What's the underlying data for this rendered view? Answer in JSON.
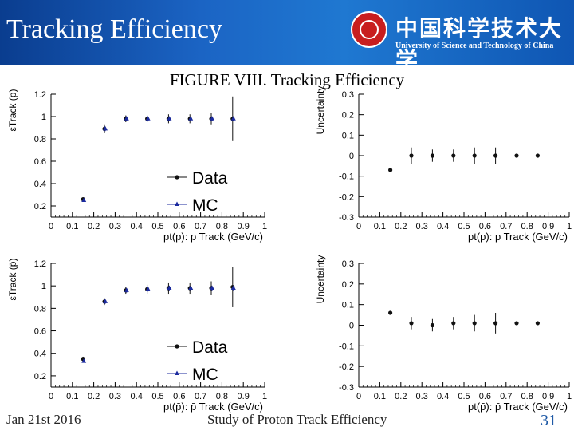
{
  "banner": {
    "title": "Tracking Efficiency",
    "university_cn": "中国科学技术大学",
    "university_en": "University of Science and Technology of China",
    "bg_color": "#1b64c4"
  },
  "caption": "FIGURE VIII. Tracking Efficiency",
  "footer": {
    "date": "Jan 21st 2016",
    "title": "Study of Proton Track Efficiency",
    "page": "31",
    "page_color": "#1f5aa6"
  },
  "chart_data": [
    {
      "type": "scatter",
      "xlabel": "pt(p): p Track (GeV/c)",
      "ylabel": "εTrack (p)",
      "xlim": [
        0,
        1
      ],
      "ylim": [
        0.1,
        1.2
      ],
      "xticks": [
        "0",
        "0.1",
        "0.2",
        "0.3",
        "0.4",
        "0.5",
        "0.6",
        "0.7",
        "0.8",
        "0.9",
        "1"
      ],
      "yticks": [
        "0.2",
        "0.4",
        "0.6",
        "0.8",
        "1",
        "1.2"
      ],
      "legend_position": "center-right",
      "series": [
        {
          "name": "Data",
          "marker": "circle",
          "color": "#111111",
          "x": [
            0.15,
            0.25,
            0.35,
            0.45,
            0.55,
            0.65,
            0.75,
            0.85
          ],
          "y": [
            0.26,
            0.89,
            0.98,
            0.98,
            0.98,
            0.98,
            0.98,
            0.98
          ],
          "err": [
            0.01,
            0.04,
            0.03,
            0.03,
            0.04,
            0.04,
            0.05,
            0.2
          ]
        },
        {
          "name": "MC",
          "marker": "triangle",
          "color": "#1b2a9e",
          "x": [
            0.15,
            0.25,
            0.35,
            0.45,
            0.55,
            0.65,
            0.75,
            0.85
          ],
          "y": [
            0.25,
            0.89,
            0.98,
            0.98,
            0.98,
            0.98,
            0.98,
            0.98
          ],
          "err": [
            0.01,
            0.02,
            0.02,
            0.02,
            0.02,
            0.02,
            0.02,
            0.02
          ]
        }
      ]
    },
    {
      "type": "scatter",
      "xlabel": "pt(p): p Track (GeV/c)",
      "ylabel": "Uncertainty",
      "xlim": [
        0,
        1
      ],
      "ylim": [
        -0.3,
        0.3
      ],
      "xticks": [
        "0",
        "0.1",
        "0.2",
        "0.3",
        "0.4",
        "0.5",
        "0.6",
        "0.7",
        "0.8",
        "0.9",
        "1"
      ],
      "yticks": [
        "-0.3",
        "-0.2",
        "-0.1",
        "0",
        "0.1",
        "0.2",
        "0.3"
      ],
      "series": [
        {
          "name": "",
          "marker": "circle",
          "color": "#111111",
          "x": [
            0.15,
            0.25,
            0.35,
            0.45,
            0.55,
            0.65,
            0.75,
            0.85
          ],
          "y": [
            -0.07,
            0.0,
            0.0,
            0.0,
            0.0,
            0.0,
            0.0,
            0.0
          ],
          "err": [
            0.0,
            0.04,
            0.03,
            0.03,
            0.04,
            0.04,
            0.0,
            0.0
          ]
        }
      ]
    },
    {
      "type": "scatter",
      "xlabel": "pt(p̄): p̄ Track (GeV/c)",
      "ylabel": "εTrack (p̄)",
      "xlim": [
        0,
        1
      ],
      "ylim": [
        0.1,
        1.2
      ],
      "xticks": [
        "0",
        "0.1",
        "0.2",
        "0.3",
        "0.4",
        "0.5",
        "0.6",
        "0.7",
        "0.8",
        "0.9",
        "1"
      ],
      "yticks": [
        "0.2",
        "0.4",
        "0.6",
        "0.8",
        "1",
        "1.2"
      ],
      "legend_position": "bottom-right",
      "series": [
        {
          "name": "Data",
          "marker": "circle",
          "color": "#111111",
          "x": [
            0.15,
            0.25,
            0.35,
            0.45,
            0.55,
            0.65,
            0.75,
            0.85
          ],
          "y": [
            0.35,
            0.86,
            0.96,
            0.97,
            0.98,
            0.98,
            0.98,
            0.99
          ],
          "err": [
            0.02,
            0.03,
            0.03,
            0.04,
            0.05,
            0.05,
            0.06,
            0.18
          ]
        },
        {
          "name": "MC",
          "marker": "triangle",
          "color": "#1b2a9e",
          "x": [
            0.15,
            0.25,
            0.35,
            0.45,
            0.55,
            0.65,
            0.75,
            0.85
          ],
          "y": [
            0.33,
            0.86,
            0.96,
            0.97,
            0.98,
            0.98,
            0.98,
            0.98
          ],
          "err": [
            0.01,
            0.02,
            0.02,
            0.02,
            0.02,
            0.02,
            0.02,
            0.02
          ]
        }
      ]
    },
    {
      "type": "scatter",
      "xlabel": "pt(p̄): p̄ Track (GeV/c)",
      "ylabel": "Uncertainty",
      "xlim": [
        0,
        1
      ],
      "ylim": [
        -0.3,
        0.3
      ],
      "xticks": [
        "0",
        "0.1",
        "0.2",
        "0.3",
        "0.4",
        "0.5",
        "0.6",
        "0.7",
        "0.8",
        "0.9",
        "1"
      ],
      "yticks": [
        "-0.3",
        "-0.2",
        "-0.1",
        "0",
        "0.1",
        "0.2",
        "0.3"
      ],
      "series": [
        {
          "name": "",
          "marker": "circle",
          "color": "#111111",
          "x": [
            0.15,
            0.25,
            0.35,
            0.45,
            0.55,
            0.65,
            0.75,
            0.85
          ],
          "y": [
            0.06,
            0.01,
            0.0,
            0.01,
            0.01,
            0.01,
            0.01,
            0.01
          ],
          "err": [
            0.0,
            0.03,
            0.03,
            0.03,
            0.04,
            0.05,
            0.0,
            0.0
          ]
        }
      ]
    }
  ]
}
